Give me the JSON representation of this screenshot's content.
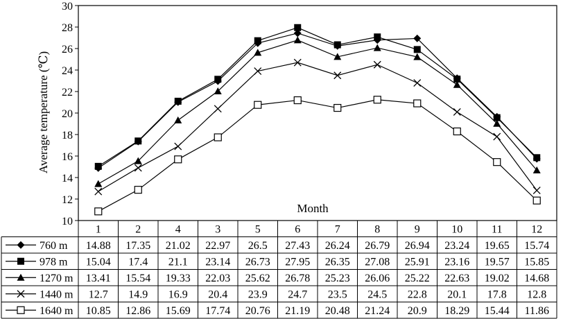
{
  "chart_data": {
    "type": "line",
    "ylabel": "Average temperature (℃)",
    "xlabel": "Month",
    "ylim": [
      10,
      30
    ],
    "yticks": [
      "10",
      "12",
      "14",
      "16",
      "18",
      "20",
      "22",
      "24",
      "26",
      "28",
      "30"
    ],
    "grid": false,
    "legend": "data-table-left",
    "categories": [
      "1",
      "2",
      "4",
      "3",
      "5",
      "6",
      "7",
      "8",
      "9",
      "10",
      "11",
      "12"
    ],
    "series": [
      {
        "name": "760 m",
        "marker": "diamond",
        "values": [
          14.88,
          17.35,
          21.02,
          22.97,
          26.5,
          27.43,
          26.24,
          26.79,
          26.94,
          23.24,
          19.65,
          15.74
        ]
      },
      {
        "name": "978 m",
        "marker": "square",
        "values": [
          15.04,
          17.4,
          21.1,
          23.14,
          26.73,
          27.95,
          26.35,
          27.08,
          25.91,
          23.16,
          19.57,
          15.85
        ]
      },
      {
        "name": "1270 m",
        "marker": "triangle",
        "values": [
          13.41,
          15.54,
          19.33,
          22.03,
          25.62,
          26.78,
          25.23,
          26.06,
          25.22,
          22.63,
          19.02,
          14.68
        ]
      },
      {
        "name": "1440 m",
        "marker": "cross",
        "values": [
          12.7,
          14.9,
          16.9,
          20.4,
          23.9,
          24.7,
          23.5,
          24.5,
          22.8,
          20.1,
          17.8,
          12.8
        ]
      },
      {
        "name": "1640 m",
        "marker": "open-square",
        "values": [
          10.85,
          12.86,
          15.69,
          17.74,
          20.76,
          21.19,
          20.48,
          21.24,
          20.9,
          18.29,
          15.44,
          11.86
        ]
      }
    ]
  }
}
